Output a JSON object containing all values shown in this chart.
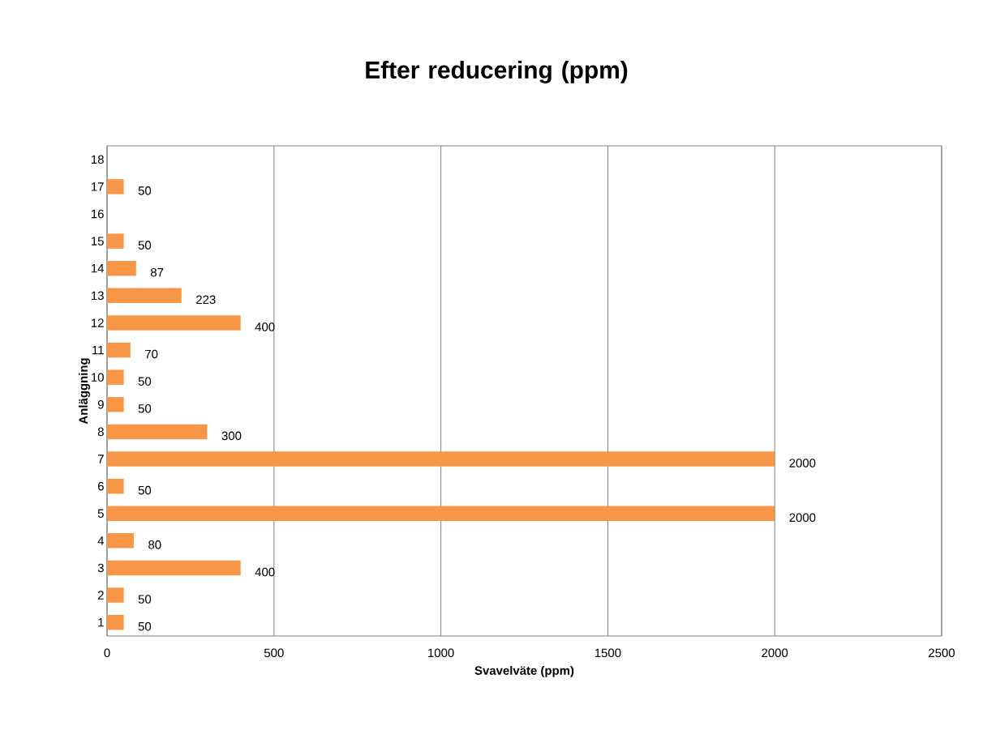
{
  "chart_data": {
    "type": "bar",
    "orientation": "horizontal",
    "title": "Efter reducering (ppm)",
    "xlabel": "Svavelväte (ppm)",
    "ylabel": "Anläggning",
    "categories": [
      "18",
      "17",
      "16",
      "15",
      "14",
      "13",
      "12",
      "11",
      "10",
      "9",
      "8",
      "7",
      "6",
      "5",
      "4",
      "3",
      "2",
      "1"
    ],
    "values": [
      null,
      50,
      null,
      50,
      87,
      223,
      400,
      70,
      50,
      50,
      300,
      2000,
      50,
      2000,
      80,
      400,
      50,
      50
    ],
    "color": "#f79646",
    "xlim": [
      0,
      2500
    ],
    "xticks": [
      0,
      500,
      1000,
      1500,
      2000,
      2500
    ],
    "grid": "x",
    "data_labels": true
  }
}
